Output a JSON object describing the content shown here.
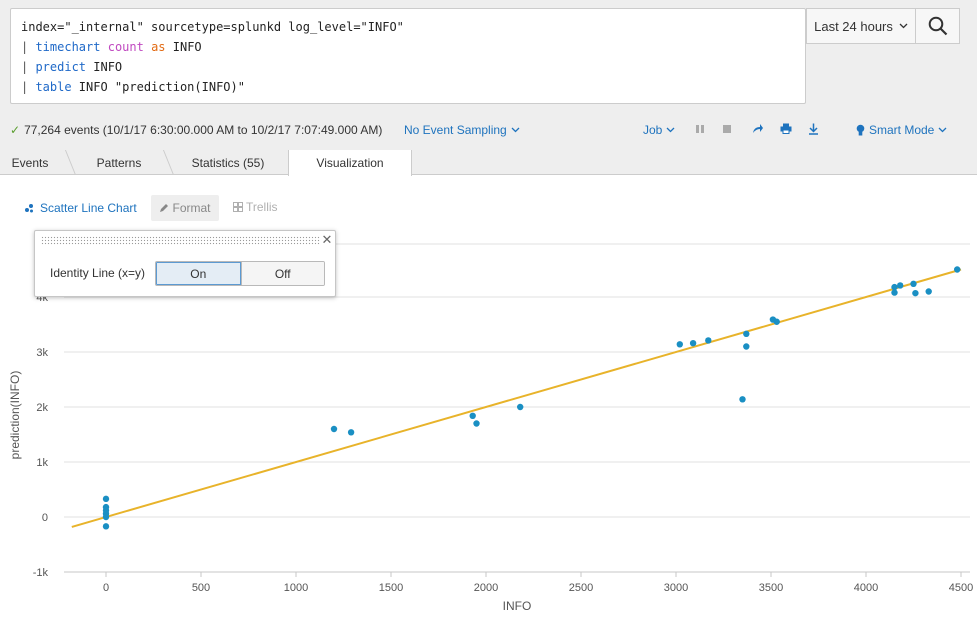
{
  "search": {
    "lines": [
      {
        "pipe": "",
        "cmd": "",
        "rest_plain": "index=\"_internal\" sourcetype=splunkd log_level=\"INFO\"",
        "fn": "",
        "as": "",
        "rest_after": ""
      },
      {
        "pipe": "| ",
        "cmd": "timechart",
        "rest_plain": " ",
        "fn": "count",
        "as": " as",
        "rest_after": " INFO"
      },
      {
        "pipe": "| ",
        "cmd": "predict",
        "rest_plain": " INFO",
        "fn": "",
        "as": "",
        "rest_after": ""
      },
      {
        "pipe": "| ",
        "cmd": "table",
        "rest_plain": " INFO \"prediction(INFO)\"",
        "fn": "",
        "as": "",
        "rest_after": ""
      }
    ],
    "time_range": "Last 24 hours",
    "search_icon": "search-icon"
  },
  "status": {
    "events_text": "77,264 events (10/1/17 6:30:00.000 AM to 10/2/17 7:07:49.000 AM)",
    "sampling": "No Event Sampling",
    "job": "Job",
    "mode": "Smart Mode"
  },
  "tabs": [
    {
      "label": "Events"
    },
    {
      "label": "Patterns"
    },
    {
      "label": "Statistics (55)"
    },
    {
      "label": "Visualization"
    }
  ],
  "viz_toolbar": {
    "chart_type": "Scatter Line Chart",
    "format": "Format",
    "trellis": "Trellis"
  },
  "popover": {
    "label": "Identity Line (x=y)",
    "on": "On",
    "off": "Off",
    "selected": "On"
  },
  "colors": {
    "points": "#1a8fc3",
    "identity_line": "#e8b32a",
    "link": "#1e73be"
  },
  "chart_data": {
    "type": "scatter",
    "xlabel": "INFO",
    "ylabel": "prediction(INFO)",
    "xlim": [
      -200,
      4550
    ],
    "ylim": [
      -1000,
      5000
    ],
    "x_ticks": [
      0,
      500,
      1000,
      1500,
      2000,
      2500,
      3000,
      3500,
      4000,
      4500
    ],
    "x_tick_labels": [
      "0",
      "500",
      "1000",
      "1500",
      "2000",
      "2500",
      "3000",
      "3500",
      "4000",
      "4500"
    ],
    "y_ticks": [
      -1000,
      0,
      1000,
      2000,
      3000,
      4000
    ],
    "y_tick_labels": [
      "-1k",
      "0",
      "1k",
      "2k",
      "3k",
      "4k"
    ],
    "grid": "horizontal",
    "identity_line": true,
    "points": [
      [
        0,
        330
      ],
      [
        0,
        180
      ],
      [
        0,
        120
      ],
      [
        0,
        60
      ],
      [
        0,
        0
      ],
      [
        0,
        -170
      ],
      [
        1200,
        1600
      ],
      [
        1290,
        1540
      ],
      [
        1930,
        1840
      ],
      [
        1950,
        1700
      ],
      [
        2180,
        2000
      ],
      [
        3020,
        3140
      ],
      [
        3090,
        3160
      ],
      [
        3170,
        3210
      ],
      [
        3350,
        2140
      ],
      [
        3370,
        3100
      ],
      [
        3370,
        3330
      ],
      [
        3510,
        3590
      ],
      [
        3530,
        3550
      ],
      [
        4150,
        4080
      ],
      [
        4150,
        4180
      ],
      [
        4180,
        4210
      ],
      [
        4250,
        4240
      ],
      [
        4260,
        4070
      ],
      [
        4330,
        4100
      ],
      [
        4480,
        4500
      ]
    ]
  }
}
